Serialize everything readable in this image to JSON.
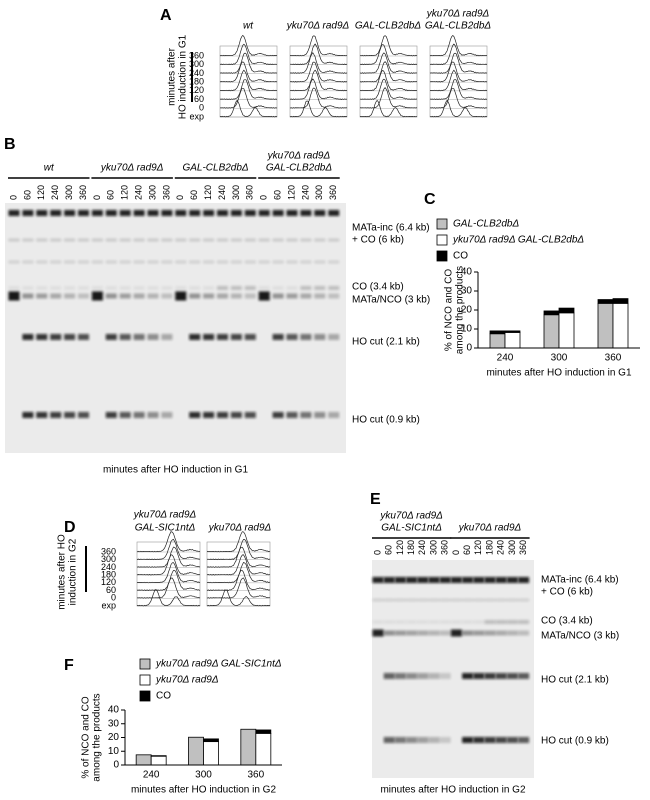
{
  "panels": {
    "a": "A",
    "b": "B",
    "c": "C",
    "d": "D",
    "e": "E",
    "f": "F"
  },
  "panel_a": {
    "strains": [
      [
        "wt"
      ],
      [
        "yku70Δ rad9Δ"
      ],
      [
        "GAL-CLB2dbΔ"
      ],
      [
        "yku70Δ rad9Δ",
        "GAL-CLB2dbΔ"
      ]
    ],
    "y_label": [
      "minutes after",
      "HO induction in G1"
    ],
    "time_labels": [
      "360",
      "300",
      "240",
      "180",
      "120",
      "60",
      "0",
      "exp"
    ]
  },
  "panel_b": {
    "strains": [
      [
        "wt"
      ],
      [
        "yku70Δ rad9Δ"
      ],
      [
        "GAL-CLB2dbΔ"
      ],
      [
        "yku70Δ rad9Δ",
        "GAL-CLB2dbΔ"
      ]
    ],
    "lanes": [
      0,
      60,
      120,
      240,
      300,
      360
    ],
    "bands": [
      "MATa-inc (6.4 kb)",
      "+ CO (6 kb)",
      "CO (3.4 kb)",
      "MATa/NCO (3 kb)",
      "HO cut (2.1 kb)",
      "HO cut (0.9 kb)"
    ],
    "x_label": "minutes after HO induction in G1"
  },
  "panel_d": {
    "strains": [
      [
        "yku70Δ rad9Δ",
        "GAL-SIC1ntΔ"
      ],
      [
        "yku70Δ rad9Δ"
      ]
    ],
    "y_label": [
      "minutes after HO",
      "induction in G2"
    ],
    "time_labels": [
      "360",
      "300",
      "240",
      "180",
      "120",
      "60",
      "0",
      "exp"
    ]
  },
  "panel_e": {
    "strains": [
      [
        "yku70Δ rad9Δ",
        "GAL-SIC1ntΔ"
      ],
      [
        "yku70Δ rad9Δ"
      ]
    ],
    "lanes": [
      0,
      60,
      120,
      180,
      240,
      300,
      360
    ],
    "bands": [
      "MATa-inc (6.4 kb)",
      "+ CO (6 kb)",
      "CO (3.4 kb)",
      "MATa/NCO (3 kb)",
      "HO cut (2.1 kb)",
      "HO cut (0.9 kb)"
    ],
    "x_label": "minutes after HO induction in G2"
  },
  "chart_data": [
    {
      "type": "bar",
      "categories": [
        "240",
        "300",
        "360"
      ],
      "x_label": "minutes after HO induction in G1",
      "y_label": [
        "% of NCO and CO",
        "among the products"
      ],
      "ylim": [
        0,
        40
      ],
      "yticks": [
        0,
        10,
        20,
        30,
        40
      ],
      "series": [
        {
          "name": "GAL-CLB2dbΔ",
          "color": "#c0c0c0",
          "values": [
            7.5,
            17.5,
            23.5
          ],
          "co_values": [
            1.5,
            2,
            2
          ]
        },
        {
          "name": "yku70Δ rad9Δ GAL-CLB2dbΔ",
          "color": "#ffffff",
          "values": [
            8.2,
            18.5,
            23.5
          ],
          "co_values": [
            0.8,
            2.5,
            2.5
          ]
        }
      ],
      "co": {
        "name": "CO",
        "color": "#000000"
      }
    },
    {
      "type": "bar",
      "categories": [
        "240",
        "300",
        "360"
      ],
      "x_label": "minutes after HO induction in G2",
      "y_label": [
        "% of NCO and CO",
        "among the products"
      ],
      "ylim": [
        0,
        40
      ],
      "yticks": [
        0,
        10,
        20,
        30,
        40
      ],
      "series": [
        {
          "name": "yku70Δ rad9Δ GAL-SIC1ntΔ",
          "color": "#c0c0c0",
          "values": [
            7.4,
            20.2,
            26
          ],
          "co_values": [
            0,
            0,
            0
          ]
        },
        {
          "name": "yku70Δ rad9Δ",
          "color": "#ffffff",
          "values": [
            6.4,
            17,
            23
          ],
          "co_values": [
            0.4,
            2,
            2.5
          ]
        }
      ],
      "co": {
        "name": "CO",
        "color": "#000000"
      }
    }
  ]
}
